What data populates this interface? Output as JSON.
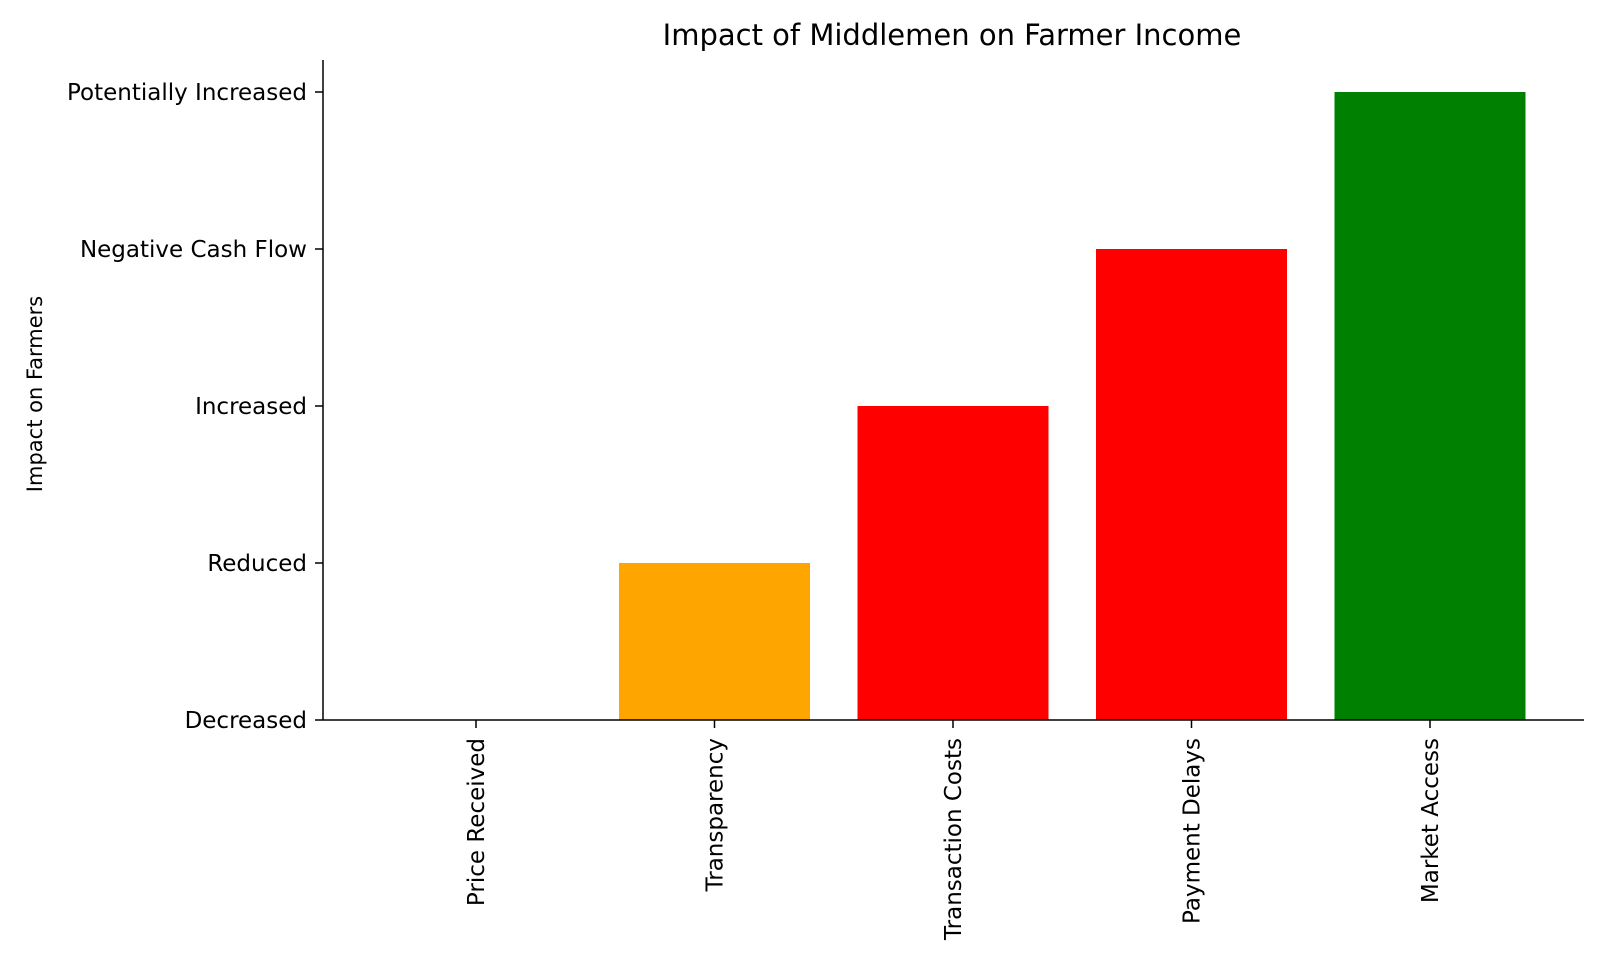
{
  "chart_data": {
    "type": "bar",
    "title": "Impact of Middlemen on Farmer Income",
    "xlabel": "",
    "ylabel": "Impact on Farmers",
    "categories": [
      "Price Received",
      "Transparency",
      "Transaction Costs",
      "Payment Delays",
      "Market Access"
    ],
    "values": [
      0,
      1,
      2,
      3,
      4
    ],
    "y_tick_labels": [
      "Decreased",
      "Reduced",
      "Increased",
      "Negative Cash Flow",
      "Potentially Increased"
    ],
    "y_tick_values": [
      0,
      1,
      2,
      3,
      4
    ],
    "ylim": [
      0,
      4
    ],
    "bar_colors": [
      "#ff0000",
      "#ffa500",
      "#ff0000",
      "#ff0000",
      "#008000"
    ],
    "grid": false,
    "legend": "none"
  }
}
